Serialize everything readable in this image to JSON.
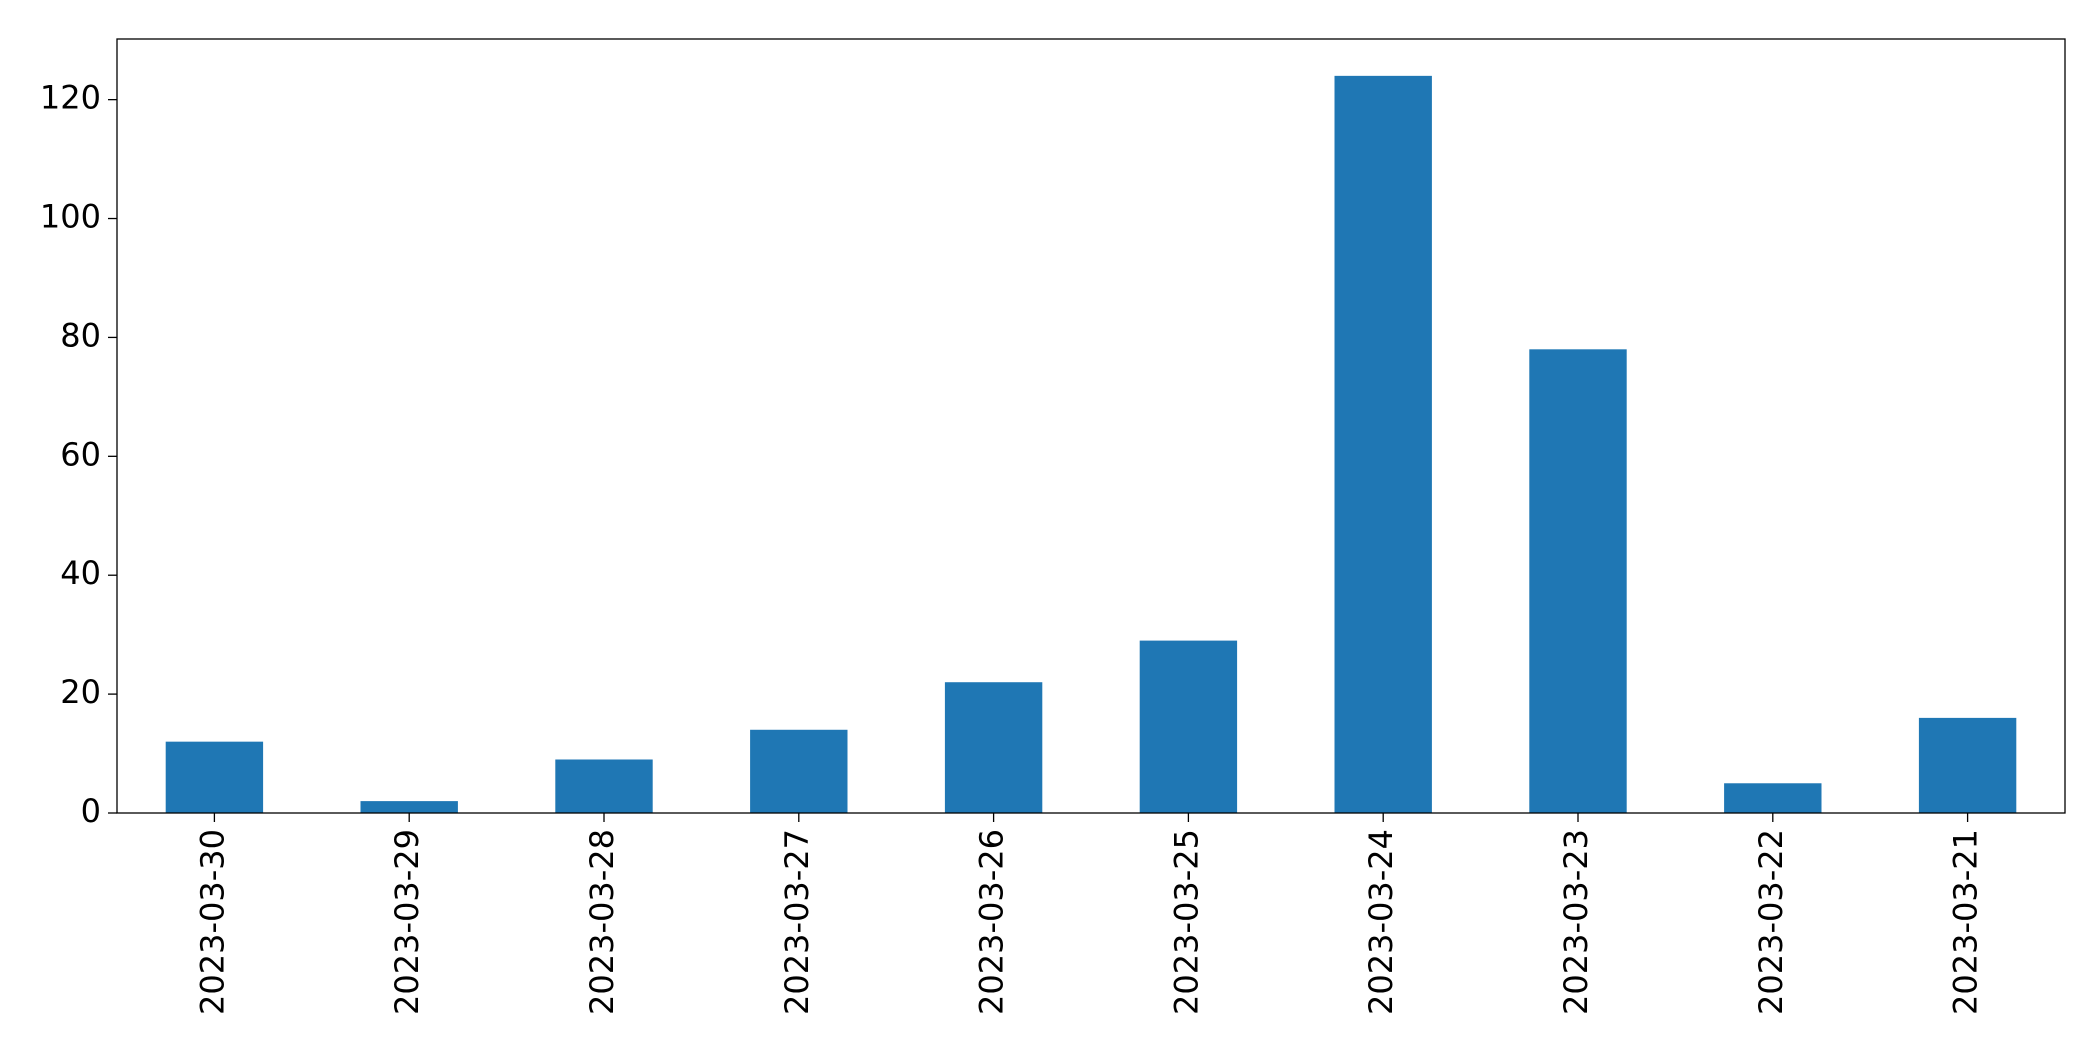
{
  "chart_data": {
    "type": "bar",
    "categories": [
      "2023-03-30",
      "2023-03-29",
      "2023-03-28",
      "2023-03-27",
      "2023-03-26",
      "2023-03-25",
      "2023-03-24",
      "2023-03-23",
      "2023-03-22",
      "2023-03-21"
    ],
    "values": [
      12,
      2,
      9,
      14,
      22,
      29,
      124,
      78,
      5,
      16
    ],
    "color": "#1f77b4",
    "ylim": [
      0,
      130.2
    ],
    "yticks": [
      0,
      20,
      40,
      60,
      80,
      100,
      120
    ],
    "grid": false
  }
}
